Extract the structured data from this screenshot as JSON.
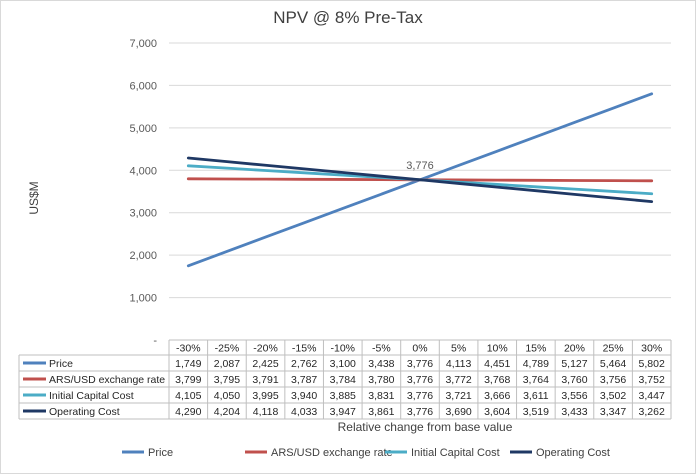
{
  "chart_data": {
    "type": "line",
    "title": "NPV @ 8% Pre-Tax",
    "ylabel": "US$M",
    "xlabel": "Relative change from base value",
    "ylim": [
      0,
      7000
    ],
    "y_ticks": [
      "-",
      "1,000",
      "2,000",
      "3,000",
      "4,000",
      "5,000",
      "6,000",
      "7,000"
    ],
    "grid": "horizontal",
    "legend_position": "bottom",
    "categories": [
      "-30%",
      "-25%",
      "-20%",
      "-15%",
      "-10%",
      "-5%",
      "0%",
      "5%",
      "10%",
      "15%",
      "20%",
      "25%",
      "30%"
    ],
    "annotation": {
      "text": "3,776",
      "category": "0%",
      "value": 3776
    },
    "series": [
      {
        "name": "Price",
        "color": "#4f81bd",
        "values": [
          1749,
          2087,
          2425,
          2762,
          3100,
          3438,
          3776,
          4113,
          4451,
          4789,
          5127,
          5464,
          5802
        ],
        "labels": [
          "1,749",
          "2,087",
          "2,425",
          "2,762",
          "3,100",
          "3,438",
          "3,776",
          "4,113",
          "4,451",
          "4,789",
          "5,127",
          "5,464",
          "5,802"
        ]
      },
      {
        "name": "ARS/USD exchange rate",
        "color": "#c0504d",
        "values": [
          3799,
          3795,
          3791,
          3787,
          3784,
          3780,
          3776,
          3772,
          3768,
          3764,
          3760,
          3756,
          3752
        ],
        "labels": [
          "3,799",
          "3,795",
          "3,791",
          "3,787",
          "3,784",
          "3,780",
          "3,776",
          "3,772",
          "3,768",
          "3,764",
          "3,760",
          "3,756",
          "3,752"
        ]
      },
      {
        "name": "Initial Capital Cost",
        "color": "#4bacc6",
        "values": [
          4105,
          4050,
          3995,
          3940,
          3885,
          3831,
          3776,
          3721,
          3666,
          3611,
          3556,
          3502,
          3447
        ],
        "labels": [
          "4,105",
          "4,050",
          "3,995",
          "3,940",
          "3,885",
          "3,831",
          "3,776",
          "3,721",
          "3,666",
          "3,611",
          "3,556",
          "3,502",
          "3,447"
        ]
      },
      {
        "name": "Operating Cost",
        "color": "#1f3864",
        "values": [
          4290,
          4204,
          4118,
          4033,
          3947,
          3861,
          3776,
          3690,
          3604,
          3519,
          3433,
          3347,
          3262
        ],
        "labels": [
          "4,290",
          "4,204",
          "4,118",
          "4,033",
          "3,947",
          "3,861",
          "3,776",
          "3,690",
          "3,604",
          "3,519",
          "3,433",
          "3,347",
          "3,262"
        ]
      }
    ]
  }
}
